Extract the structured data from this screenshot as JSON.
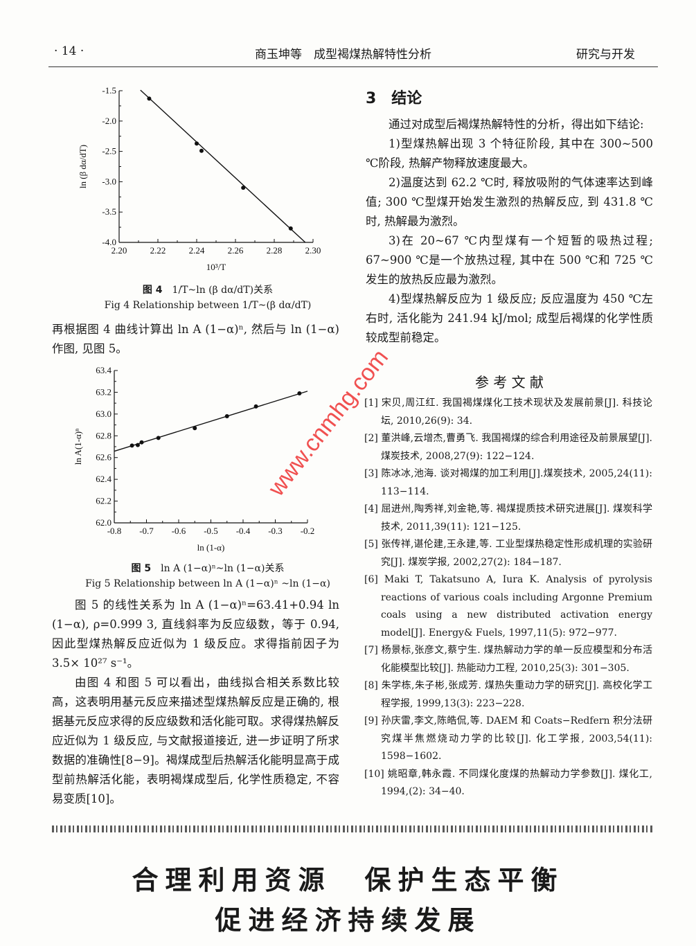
{
  "header": {
    "page_number": "· 14 ·",
    "title": "商玉坤等　成型褐煤热解特性分析",
    "section": "研究与开发"
  },
  "left": {
    "para_fig5_intro": "再根据图 4 曲线计算出 ln A (1−α)ⁿ, 然后与 ln (1−α) 作图, 见图 5。",
    "para_linear": "图 5 的线性关系为 ln A (1−α)ⁿ=63.41+0.94 ln (1−α), ρ=0.999 3, 直线斜率为反应级数，等于 0.94, 因此型煤热解反应近似为 1 级反应。求得指前因子为 3.5× 10²⁷ s⁻¹。",
    "para_conclusion": "由图 4 和图 5 可以看出，曲线拟合相关系数比较高，这表明用基元反应来描述型煤热解反应是正确的, 根据基元反应求得的反应级数和活化能可取。求得煤热解反应近似为 1 级反应, 与文献报道接近, 进一步证明了所求数据的准确性[8−9]。褐煤成型后热解活化能明显高于成型前热解活化能，表明褐煤成型后, 化学性质稳定, 不容易变质[10]。"
  },
  "fig4": {
    "caption_cn_label": "图 4",
    "caption_cn": "1/T~ln (β dα/dT)关系",
    "caption_en": "Fig 4 Relationship between 1/T~(β dα/dT)"
  },
  "fig5": {
    "caption_cn_label": "图 5",
    "caption_cn": "ln A (1−α)ⁿ~ln (1−α)关系",
    "caption_en": "Fig 5 Relationship between ln A (1−α)ⁿ ~ln (1−α)"
  },
  "chart_data": [
    {
      "type": "scatter",
      "xlabel": "10³/T",
      "ylabel": "ln (β dα/dT)",
      "xlim": [
        2.2,
        2.3
      ],
      "ylim": [
        -4.0,
        -1.5
      ],
      "xticks": [
        "2.20",
        "2.22",
        "2.24",
        "2.26",
        "2.28",
        "2.30"
      ],
      "yticks": [
        "-4.0",
        "-3.5",
        "-3.0",
        "-2.5",
        "-2.0",
        "-1.5"
      ],
      "x": [
        2.2155,
        2.24,
        2.2425,
        2.264,
        2.2885
      ],
      "y": [
        -1.63,
        -2.37,
        -2.49,
        -3.1,
        -3.77
      ],
      "fit_line": {
        "x": [
          2.211,
          2.296
        ],
        "y": [
          -1.49,
          -4.0
        ]
      },
      "grid": false
    },
    {
      "type": "scatter",
      "xlabel": "ln (1-α)",
      "ylabel": "ln A(1-α)ⁿ",
      "xlim": [
        -0.8,
        -0.2
      ],
      "ylim": [
        62.0,
        63.4
      ],
      "xticks": [
        "-0.8",
        "-0.7",
        "-0.6",
        "-0.5",
        "-0.4",
        "-0.3",
        "-0.2"
      ],
      "yticks": [
        "62.0",
        "62.2",
        "62.4",
        "62.6",
        "62.8",
        "63.0",
        "63.2",
        "63.4"
      ],
      "x": [
        -0.745,
        -0.727,
        -0.715,
        -0.663,
        -0.55,
        -0.45,
        -0.36,
        -0.225
      ],
      "y": [
        62.71,
        62.715,
        62.74,
        62.78,
        62.87,
        62.98,
        63.07,
        63.19
      ],
      "fit_line": {
        "x": [
          -0.8,
          -0.2
        ],
        "y": [
          62.658,
          63.21
        ]
      },
      "grid": false
    }
  ],
  "right": {
    "section_title": "3　结论",
    "paras": [
      "通过对成型后褐煤热解特性的分析，得出如下结论:",
      "1)型煤热解出现 3 个特征阶段, 其中在 300~500 ℃阶段, 热解产物释放速度最大。",
      "2)温度达到 62.2 ℃时, 释放吸附的气体速率达到峰值; 300 ℃型煤开始发生激烈的热解反应, 到 431.8 ℃时, 热解最为激烈。",
      "3)在 20~67 ℃内型煤有一个短暂的吸热过程; 67~900 ℃是一个放热过程, 其中在 500 ℃和 725 ℃发生的放热反应最为激烈。",
      "4)型煤热解反应为 1 级反应; 反应温度为 450 ℃左右时, 活化能为 241.94 kJ/mol; 成型后褐煤的化学性质较成型前稳定。"
    ],
    "refs_title": "参 考 文 献",
    "refs": [
      "[1] 宋贝,周江红. 我国褐煤煤化工技术现状及发展前景[J]. 科技论坛, 2010,26(9): 34.",
      "[2] 董洪峰,云增杰,曹勇飞. 我国褐煤的综合利用途径及前景展望[J]. 煤炭技术, 2008,27(9): 122−124.",
      "[3] 陈冰冰,池海. 谈对褐煤的加工利用[J].煤炭技术, 2005,24(11): 113−114.",
      "[4] 屈进州,陶秀祥,刘金艳,等. 褐煤提质技术研究进展[J]. 煤炭科学技术, 2011,39(11): 121−125.",
      "[5] 张传祥,谌伦建,王永建,等. 工业型煤热稳定性形成机理的实验研究[J]. 煤炭学报, 2002,27(2): 184−187.",
      "[6] Maki T, Takatsuno A, Iura K. Analysis of pyrolysis reactions of various coals including Argonne Premium coals using a new distributed activation energy model[J]. Energy& Fuels, 1997,11(5): 972−977.",
      "[7] 杨景标,张彦文,蔡宁生. 煤热解动力学的单一反应模型和分布活化能模型比较[J]. 热能动力工程, 2010,25(3): 301−305.",
      "[8] 朱学栋,朱子彬,张成芳. 煤热失重动力学的研究[J]. 高校化学工程学报, 1999,13(3): 223−228.",
      "[9] 孙庆雷,李文,陈皓侃,等. DAEM 和 Coats−Redfern 积分法研究煤半焦燃烧动力学的比较[J]. 化工学报, 2003,54(11): 1598−1602.",
      "[10] 姚昭章,韩永霞. 不同煤化度煤的热解动力学参数[J]. 煤化工, 1994,(2): 34−40."
    ]
  },
  "footer": {
    "slogan_line1": "合理利用资源　保护生态平衡",
    "slogan_line2": "促进经济持续发展"
  },
  "watermark": "www.cnmhg.com",
  "colors": {
    "watermark": "#e33333",
    "ink": "#1a1a1a"
  }
}
